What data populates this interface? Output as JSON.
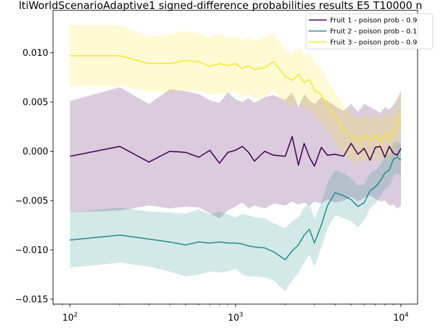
{
  "chart_data": {
    "type": "line",
    "title": "ltiWorldScenarioAdaptive1 signed-difference probabilities results E5 T10000 n",
    "xlabel": "",
    "ylabel": "",
    "xscale": "log",
    "xlim": [
      79,
      12600
    ],
    "ylim": [
      -0.0155,
      0.0143
    ],
    "grid": false,
    "legend_position": "top-right",
    "x_tick_values": [
      100,
      1000,
      10000
    ],
    "x_tick_labels": [
      {
        "base": "10",
        "exp": "2"
      },
      {
        "base": "10",
        "exp": "3"
      },
      {
        "base": "10",
        "exp": "4"
      }
    ],
    "y_tick_values": [
      -0.015,
      -0.01,
      -0.005,
      0.0,
      0.005,
      0.01
    ],
    "y_tick_labels": [
      "−0.015",
      "−0.010",
      "−0.005",
      "0.000",
      "0.005",
      "0.010"
    ],
    "series": [
      {
        "name": "Fruit 1 - poison prob  - 0.9",
        "color": "#440154",
        "band_color": "#440154",
        "x": [
          100,
          200,
          300,
          400,
          500,
          600,
          700,
          800,
          900,
          1000,
          1100,
          1200,
          1300,
          1500,
          1700,
          2000,
          2200,
          2400,
          2600,
          2800,
          3000,
          3300,
          3600,
          4000,
          4500,
          5000,
          5500,
          6000,
          6500,
          7000,
          7500,
          8000,
          8500,
          9000,
          9500,
          10000
        ],
        "mean": [
          -0.0005,
          0.0005,
          -0.0011,
          0.0,
          -0.0001,
          -0.0006,
          0.0001,
          -0.0012,
          -0.0001,
          0.0001,
          0.0005,
          -0.0001,
          -0.001,
          0.0,
          -0.0004,
          -0.0005,
          0.0015,
          -0.0014,
          0.0008,
          -0.0006,
          -0.0015,
          0.0004,
          -0.0004,
          -0.0003,
          -0.0005,
          0.0008,
          -0.0003,
          0.0003,
          -0.0009,
          0.0004,
          0.0005,
          -0.0006,
          0.0005,
          -0.0002,
          -0.0004,
          0.0003
        ],
        "lower": [
          -0.0062,
          -0.006,
          -0.0055,
          -0.0058,
          -0.0056,
          -0.0057,
          -0.0063,
          -0.0068,
          -0.006,
          -0.0056,
          -0.0052,
          -0.0058,
          -0.0055,
          -0.0058,
          -0.0053,
          -0.0055,
          -0.0051,
          -0.0054,
          -0.0052,
          -0.0055,
          -0.0051,
          -0.0053,
          -0.0049,
          -0.0052,
          -0.005,
          -0.0046,
          -0.0051,
          -0.0047,
          -0.0045,
          -0.0048,
          -0.0051,
          -0.005,
          -0.0055,
          -0.0054,
          -0.0058,
          -0.0055
        ],
        "upper": [
          0.0051,
          0.0065,
          0.0048,
          0.0063,
          0.0061,
          0.0058,
          0.0052,
          0.0049,
          0.006,
          0.0053,
          0.005,
          0.0054,
          0.0049,
          0.0055,
          0.0057,
          0.0052,
          0.006,
          0.0045,
          0.0058,
          0.0052,
          0.0048,
          0.0055,
          0.0051,
          0.0046,
          0.0041,
          0.0048,
          0.004,
          0.0048,
          0.0045,
          0.0042,
          0.0039,
          0.0045,
          0.0042,
          0.0047,
          0.0053,
          0.0062
        ]
      },
      {
        "name": "Fruit 2 - poison prob  - 0.1",
        "color": "#21918c",
        "band_color": "#21918c",
        "x": [
          100,
          200,
          300,
          400,
          500,
          600,
          700,
          800,
          900,
          1000,
          1100,
          1200,
          1300,
          1500,
          1700,
          2000,
          2200,
          2400,
          2600,
          2800,
          3000,
          3300,
          3600,
          4000,
          4500,
          5000,
          5500,
          6000,
          6500,
          7000,
          7500,
          8000,
          8500,
          9000,
          9500,
          10000
        ],
        "mean": [
          -0.009,
          -0.0085,
          -0.0089,
          -0.0092,
          -0.0095,
          -0.0092,
          -0.0093,
          -0.0092,
          -0.0093,
          -0.0093,
          -0.0094,
          -0.0096,
          -0.0097,
          -0.0098,
          -0.0102,
          -0.011,
          -0.0101,
          -0.0095,
          -0.0085,
          -0.0079,
          -0.0093,
          -0.0075,
          -0.0055,
          -0.0042,
          -0.0045,
          -0.0049,
          -0.0056,
          -0.0052,
          -0.004,
          -0.0036,
          -0.003,
          -0.0022,
          -0.0019,
          -0.0008,
          -0.0006,
          -0.0009
        ],
        "lower": [
          -0.0118,
          -0.0113,
          -0.0117,
          -0.0122,
          -0.0127,
          -0.0125,
          -0.0122,
          -0.0123,
          -0.0122,
          -0.0119,
          -0.0125,
          -0.0127,
          -0.0127,
          -0.0128,
          -0.0131,
          -0.0142,
          -0.0131,
          -0.0123,
          -0.0113,
          -0.0105,
          -0.0117,
          -0.0098,
          -0.0078,
          -0.0065,
          -0.0068,
          -0.0071,
          -0.0077,
          -0.007,
          -0.0058,
          -0.0053,
          -0.0046,
          -0.0038,
          -0.0035,
          -0.0025,
          -0.0022,
          -0.0025
        ],
        "upper": [
          -0.0062,
          -0.0057,
          -0.0061,
          -0.0062,
          -0.0063,
          -0.0059,
          -0.0064,
          -0.0061,
          -0.0064,
          -0.0067,
          -0.0063,
          -0.0065,
          -0.0067,
          -0.0068,
          -0.0073,
          -0.0078,
          -0.0071,
          -0.0067,
          -0.0057,
          -0.0053,
          -0.0069,
          -0.0052,
          -0.0032,
          -0.0019,
          -0.0022,
          -0.0027,
          -0.0035,
          -0.0034,
          -0.0022,
          -0.0019,
          -0.0014,
          -0.0006,
          -0.0003,
          0.0009,
          0.001,
          0.0007
        ]
      },
      {
        "name": "Fruit 3 - poison prob  - 0.9",
        "color": "#fde725",
        "band_color": "#fde725",
        "x": [
          100,
          200,
          300,
          400,
          500,
          600,
          700,
          800,
          900,
          1000,
          1100,
          1200,
          1300,
          1500,
          1700,
          2000,
          2200,
          2400,
          2600,
          2800,
          3000,
          3300,
          3600,
          4000,
          4500,
          5000,
          5500,
          6000,
          6500,
          7000,
          7500,
          8000,
          8500,
          9000,
          9500,
          10000
        ],
        "mean": [
          0.0097,
          0.0097,
          0.0089,
          0.0089,
          0.0092,
          0.0091,
          0.0086,
          0.0089,
          0.0087,
          0.0089,
          0.0084,
          0.0087,
          0.0083,
          0.0085,
          0.0091,
          0.0076,
          0.0072,
          0.0078,
          0.007,
          0.0073,
          0.0062,
          0.0057,
          0.0046,
          0.0035,
          0.0022,
          0.0015,
          0.001,
          0.0016,
          0.0011,
          0.0017,
          0.001,
          0.0018,
          0.0013,
          0.0019,
          0.0028,
          0.0038
        ],
        "lower": [
          0.0066,
          0.0066,
          0.0061,
          0.006,
          0.0062,
          0.0062,
          0.0057,
          0.0058,
          0.0059,
          0.0061,
          0.0055,
          0.0058,
          0.0054,
          0.0055,
          0.0062,
          0.0049,
          0.0045,
          0.0051,
          0.0042,
          0.0046,
          0.0034,
          0.003,
          0.0021,
          0.001,
          -0.0002,
          -0.0009,
          -0.0013,
          -0.0007,
          -0.0011,
          -0.0005,
          -0.0011,
          -0.0004,
          -0.0009,
          -0.0002,
          0.0006,
          0.0016
        ],
        "upper": [
          0.0128,
          0.0128,
          0.0117,
          0.0118,
          0.0122,
          0.012,
          0.0115,
          0.012,
          0.0115,
          0.0117,
          0.0113,
          0.0116,
          0.0112,
          0.0115,
          0.012,
          0.0103,
          0.0099,
          0.0105,
          0.0098,
          0.01,
          0.009,
          0.0084,
          0.0071,
          0.006,
          0.0046,
          0.0039,
          0.0033,
          0.0039,
          0.0033,
          0.0039,
          0.0031,
          0.004,
          0.0035,
          0.004,
          0.005,
          0.006
        ]
      }
    ]
  }
}
